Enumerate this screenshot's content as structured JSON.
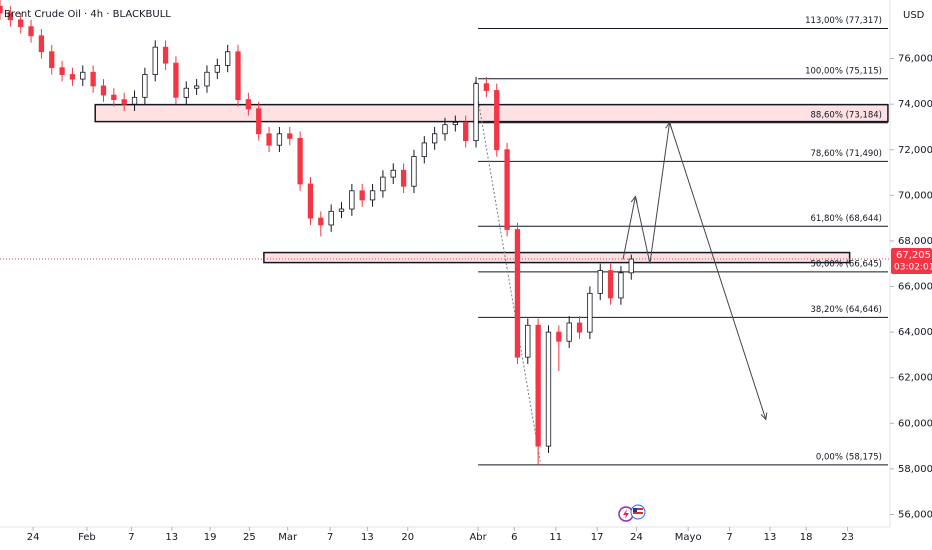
{
  "chart_data": {
    "type": "candlestick",
    "title": "Brent Crude Oil · 4h · BLACKBULL",
    "currency": "USD",
    "x": [
      0,
      1,
      2,
      3,
      4,
      5,
      6,
      7,
      8,
      9,
      10,
      11,
      12,
      13,
      14,
      15,
      16,
      17,
      18,
      19,
      20,
      21,
      22,
      23,
      24,
      25,
      26,
      27,
      28,
      29,
      30,
      31,
      32,
      33,
      34,
      35,
      36,
      37,
      38,
      39,
      40,
      41,
      42,
      43,
      44,
      45,
      46,
      47,
      48,
      49,
      50,
      51,
      52,
      53,
      54,
      55,
      56,
      57,
      58,
      59,
      60,
      61
    ],
    "open": [
      78300,
      78000,
      77700,
      77400,
      77000,
      76300,
      75600,
      75300,
      75100,
      75400,
      74800,
      74400,
      74200,
      74000,
      74300,
      75300,
      76500,
      75800,
      74300,
      74700,
      74800,
      75400,
      75700,
      76300,
      74200,
      73800,
      72700,
      72200,
      72700,
      72500,
      70500,
      69000,
      68700,
      69300,
      69400,
      70200,
      69800,
      70200,
      70800,
      71100,
      70400,
      71700,
      72300,
      72700,
      73100,
      73200,
      72400,
      74900,
      74600,
      72000,
      68500,
      62900,
      64300,
      59000,
      64000,
      63600,
      64400,
      64000,
      65700,
      66700,
      65500,
      66600
    ],
    "high": [
      78600,
      78300,
      78000,
      77700,
      77300,
      76600,
      75900,
      75600,
      75700,
      75700,
      75100,
      74700,
      74500,
      74600,
      75600,
      76800,
      76800,
      76100,
      75000,
      75100,
      75700,
      76000,
      76600,
      76600,
      74500,
      74100,
      73000,
      73000,
      73000,
      72800,
      70800,
      69300,
      69600,
      69700,
      70500,
      70500,
      70500,
      71100,
      71400,
      71400,
      72000,
      72600,
      73000,
      73400,
      73500,
      73500,
      75200,
      75200,
      74900,
      72300,
      68800,
      64600,
      64600,
      64300,
      64300,
      64700,
      64700,
      66000,
      67000,
      67000,
      66900,
      67400
    ],
    "low": [
      77700,
      77400,
      77100,
      76700,
      76000,
      75300,
      75000,
      74800,
      74800,
      74500,
      74100,
      73900,
      73700,
      73700,
      74000,
      75000,
      75500,
      74000,
      74000,
      74400,
      74500,
      75100,
      75400,
      73900,
      73500,
      72400,
      71900,
      71900,
      72200,
      70200,
      68700,
      68200,
      68400,
      69000,
      69100,
      69500,
      69500,
      69900,
      70500,
      70100,
      70100,
      71400,
      72000,
      72400,
      72800,
      72100,
      72100,
      74300,
      71700,
      68200,
      62600,
      62600,
      58175,
      58700,
      62300,
      63300,
      63700,
      63700,
      65400,
      65200,
      65200,
      66300
    ],
    "close": [
      78000,
      77700,
      77400,
      77000,
      76300,
      75600,
      75300,
      75100,
      75400,
      74800,
      74400,
      74200,
      74000,
      74300,
      75300,
      76500,
      75800,
      74300,
      74700,
      74800,
      75400,
      75700,
      76300,
      74200,
      73800,
      72700,
      72200,
      72700,
      72500,
      70500,
      69000,
      68700,
      69300,
      69400,
      70200,
      69800,
      70200,
      70800,
      71100,
      70400,
      71700,
      72300,
      72700,
      73100,
      73200,
      72400,
      74900,
      74600,
      72000,
      68500,
      62900,
      64300,
      59000,
      64000,
      63600,
      64400,
      64000,
      65700,
      66700,
      65500,
      66600,
      67205
    ],
    "up_color": "#ffffff",
    "down_color": "#f23645",
    "xlim": [
      0,
      86
    ],
    "ylim": [
      55450,
      78570
    ],
    "xticks": [
      {
        "value": 3.2,
        "label": "24"
      },
      {
        "value": 8.4,
        "label": "Feb"
      },
      {
        "value": 12.7,
        "label": "7"
      },
      {
        "value": 16.6,
        "label": "13"
      },
      {
        "value": 20.3,
        "label": "19"
      },
      {
        "value": 24.1,
        "label": "25"
      },
      {
        "value": 27.8,
        "label": "Mar"
      },
      {
        "value": 31.9,
        "label": "7"
      },
      {
        "value": 35.5,
        "label": "13"
      },
      {
        "value": 39.4,
        "label": "20"
      },
      {
        "value": 46.2,
        "label": "Abr"
      },
      {
        "value": 49.7,
        "label": "6"
      },
      {
        "value": 53.7,
        "label": "11"
      },
      {
        "value": 57.7,
        "label": "17"
      },
      {
        "value": 61.5,
        "label": "24"
      },
      {
        "value": 66.5,
        "label": "Mayo"
      },
      {
        "value": 70.5,
        "label": "7"
      },
      {
        "value": 74.4,
        "label": "13"
      },
      {
        "value": 77.9,
        "label": "18"
      },
      {
        "value": 81.9,
        "label": "23"
      }
    ],
    "yticks": [
      {
        "value": 56000,
        "label": "56,000"
      },
      {
        "value": 58000,
        "label": "58,000"
      },
      {
        "value": 60000,
        "label": "60,000"
      },
      {
        "value": 62000,
        "label": "62,000"
      },
      {
        "value": 64000,
        "label": "64,000"
      },
      {
        "value": 66000,
        "label": "66,000"
      },
      {
        "value": 68000,
        "label": "68,000"
      },
      {
        "value": 70000,
        "label": "70,000"
      },
      {
        "value": 72000,
        "label": "72,000"
      },
      {
        "value": 74000,
        "label": "74,000"
      },
      {
        "value": 76000,
        "label": "76,000"
      }
    ],
    "last_price": {
      "value": 67205,
      "label": "67,205",
      "countdown": "03:02:01"
    },
    "fib_start_x": 46.2,
    "fib_levels": [
      {
        "value": 77317,
        "label": "113,00% (77,317)"
      },
      {
        "value": 75115,
        "label": "100,00% (75,115)"
      },
      {
        "value": 73184,
        "label": "88,60% (73,184)"
      },
      {
        "value": 71490,
        "label": "78,60% (71,490)"
      },
      {
        "value": 68644,
        "label": "61,80% (68,644)"
      },
      {
        "value": 66645,
        "label": "50,00% (66,645)"
      },
      {
        "value": 64646,
        "label": "38,20% (64,646)"
      },
      {
        "value": 58175,
        "label": "0,00% (58,175)"
      }
    ],
    "zones": [
      {
        "x": [
          9.2,
          85.8
        ],
        "y": [
          73235,
          73980
        ]
      },
      {
        "x": [
          25.5,
          82.1
        ],
        "y": [
          67050,
          67490
        ]
      }
    ],
    "trend_line": {
      "x": [
        45.9,
        52.2
      ],
      "y": [
        74990,
        58330
      ]
    },
    "projection": {
      "x": [
        60.2,
        61.4,
        62.8,
        64.7,
        74.0
      ],
      "y": [
        67184,
        69950,
        67010,
        73200,
        60170
      ]
    }
  }
}
